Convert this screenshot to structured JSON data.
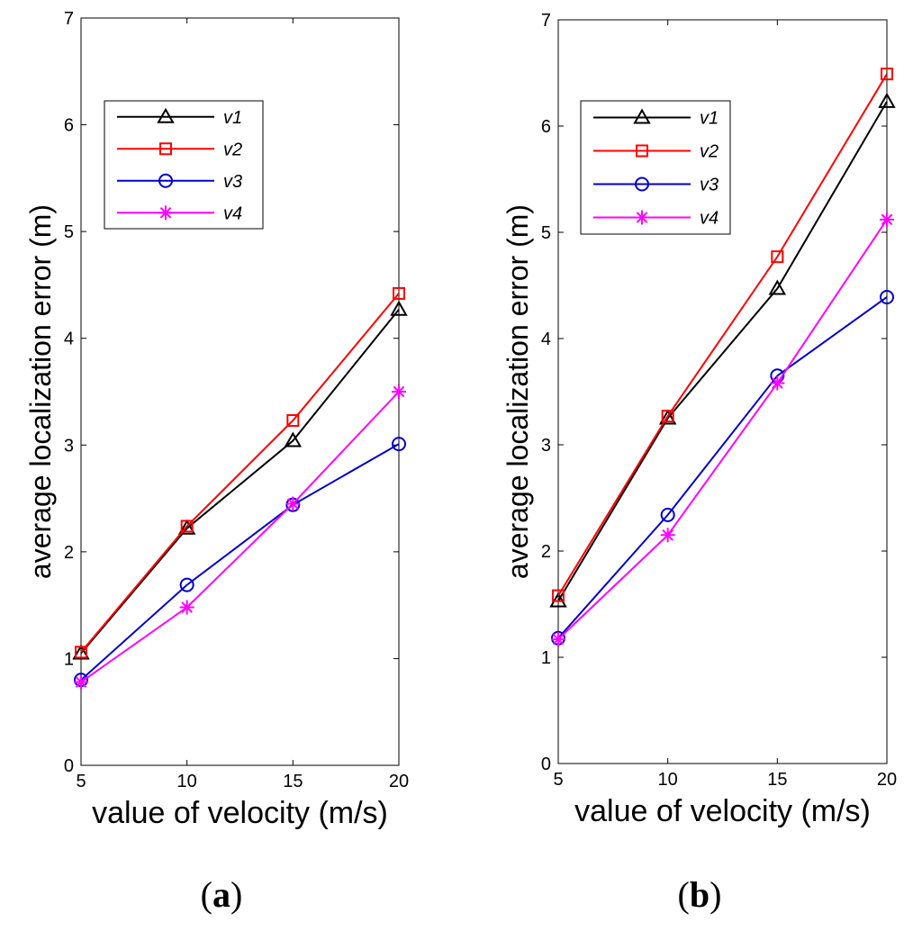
{
  "chart_data": [
    {
      "type": "line",
      "xlabel": "value of velocity (m/s)",
      "ylabel": "average localization error (m)",
      "xlim": [
        5,
        20
      ],
      "ylim": [
        0,
        7
      ],
      "xticks": [
        5,
        10,
        15,
        20
      ],
      "yticks": [
        0,
        1,
        2,
        3,
        4,
        5,
        6,
        7
      ],
      "x": [
        5,
        10,
        15,
        20
      ],
      "series": [
        {
          "name": "v1",
          "values": [
            1.05,
            2.22,
            3.04,
            4.27
          ],
          "color": "#000000",
          "marker": "triangle"
        },
        {
          "name": "v2",
          "values": [
            1.06,
            2.24,
            3.23,
            4.42
          ],
          "color": "#ff0000",
          "marker": "square"
        },
        {
          "name": "v3",
          "values": [
            0.8,
            1.69,
            2.44,
            3.01
          ],
          "color": "#0000cc",
          "marker": "circle"
        },
        {
          "name": "v4",
          "values": [
            0.78,
            1.48,
            2.45,
            3.5
          ],
          "color": "#ff00ff",
          "marker": "star"
        }
      ],
      "legend": "upper-left",
      "caption_letter": "a"
    },
    {
      "type": "line",
      "xlabel": "value of velocity (m/s)",
      "ylabel": "average localization error (m)",
      "xlim": [
        5,
        20
      ],
      "ylim": [
        0,
        7
      ],
      "xticks": [
        5,
        10,
        15,
        20
      ],
      "yticks": [
        0,
        1,
        2,
        3,
        4,
        5,
        6,
        7
      ],
      "x": [
        5,
        10,
        15,
        20
      ],
      "series": [
        {
          "name": "v1",
          "values": [
            1.53,
            3.25,
            4.47,
            6.23
          ],
          "color": "#000000",
          "marker": "triangle"
        },
        {
          "name": "v2",
          "values": [
            1.58,
            3.27,
            4.77,
            6.49
          ],
          "color": "#ff0000",
          "marker": "square"
        },
        {
          "name": "v3",
          "values": [
            1.18,
            2.34,
            3.65,
            4.39
          ],
          "color": "#0000cc",
          "marker": "circle"
        },
        {
          "name": "v4",
          "values": [
            1.17,
            2.15,
            3.58,
            5.12
          ],
          "color": "#ff00ff",
          "marker": "star"
        }
      ],
      "legend": "upper-left",
      "caption_letter": "b"
    }
  ],
  "captions": [
    {
      "open": "(",
      "letter": "a",
      "close": ")"
    },
    {
      "open": "(",
      "letter": "b",
      "close": ")"
    }
  ]
}
